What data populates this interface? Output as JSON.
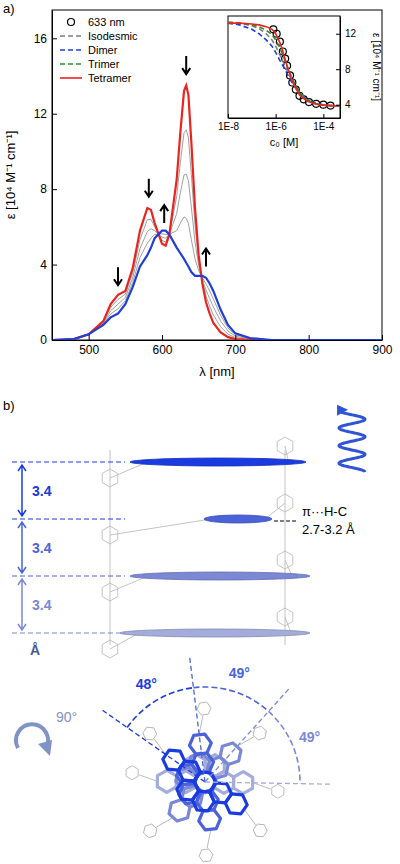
{
  "chart_data": [
    {
      "type": "line",
      "panel_label": "a)",
      "x_label": "λ [nm]",
      "y_label": "ε [10⁴ M⁻¹ cm⁻¹]",
      "xlim": [
        450,
        900
      ],
      "ylim": [
        0,
        17.5
      ],
      "xticks": [
        500,
        600,
        700,
        800,
        900
      ],
      "yticks": [
        0,
        4,
        8,
        12,
        16
      ],
      "x": [
        450,
        480,
        500,
        520,
        530,
        540,
        550,
        560,
        570,
        580,
        585,
        590,
        600,
        605,
        610,
        620,
        625,
        630,
        633,
        636,
        640,
        645,
        650,
        655,
        660,
        665,
        670,
        680,
        690,
        700,
        720,
        750,
        800,
        850,
        900
      ],
      "series": [
        {
          "color": "#a0a0a0",
          "values": [
            0,
            0.05,
            0.3,
            0.85,
            1.38,
            1.65,
            2.08,
            3.05,
            4.38,
            5.13,
            5.4,
            5.6,
            5.63,
            5.6,
            5.6,
            5.8,
            6.2,
            6.53,
            6.45,
            6.18,
            5.33,
            4.3,
            3.68,
            3.3,
            2.98,
            2.6,
            2.18,
            1.3,
            0.64,
            0.28,
            0.08,
            0,
            0,
            0,
            0
          ]
        },
        {
          "color": "#a0a0a0",
          "values": [
            0,
            0.05,
            0.3,
            0.9,
            1.55,
            1.9,
            2.25,
            3.3,
            4.85,
            5.75,
            5.9,
            5.8,
            5.45,
            5.4,
            5.6,
            6.7,
            7.8,
            8.75,
            8.8,
            8.45,
            7.05,
            5.2,
            3.95,
            3.2,
            2.65,
            2.2,
            1.75,
            1.0,
            0.48,
            0.2,
            0.05,
            0,
            0,
            0,
            0
          ]
        },
        {
          "color": "#a0a0a0",
          "values": [
            0,
            0.05,
            0.3,
            0.95,
            1.73,
            2.15,
            2.43,
            3.55,
            5.33,
            6.38,
            6.4,
            6.0,
            5.28,
            5.2,
            5.6,
            7.6,
            9.4,
            10.98,
            11.15,
            10.73,
            8.78,
            6.1,
            4.23,
            3.1,
            2.33,
            1.8,
            1.33,
            0.7,
            0.31,
            0.13,
            0.03,
            0,
            0,
            0,
            0
          ]
        },
        {
          "color": "#e8251f",
          "values": [
            0,
            0.05,
            0.3,
            1.0,
            1.9,
            2.4,
            2.6,
            3.8,
            5.8,
            7.0,
            6.9,
            6.2,
            5.1,
            5.0,
            5.6,
            8.5,
            11.0,
            13.2,
            13.5,
            13.0,
            10.5,
            7.0,
            4.5,
            3.0,
            2.0,
            1.4,
            0.9,
            0.4,
            0.15,
            0.05,
            0,
            0,
            0,
            0,
            0
          ]
        },
        {
          "color": "#1f3fd6",
          "values": [
            0,
            0.05,
            0.3,
            0.8,
            1.2,
            1.4,
            1.9,
            2.8,
            3.9,
            4.5,
            4.9,
            5.4,
            5.8,
            5.8,
            5.6,
            4.9,
            4.6,
            4.3,
            4.1,
            3.9,
            3.6,
            3.4,
            3.4,
            3.4,
            3.3,
            3.0,
            2.6,
            1.6,
            0.8,
            0.35,
            0.1,
            0,
            0,
            0,
            0
          ]
        }
      ],
      "arrows": [
        {
          "x": 540,
          "y": 2.9,
          "direction": "down"
        },
        {
          "x": 582,
          "y": 7.6,
          "direction": "down"
        },
        {
          "x": 603,
          "y": 6.2,
          "direction": "up"
        },
        {
          "x": 633,
          "y": 14.1,
          "direction": "down"
        },
        {
          "x": 660,
          "y": 3.9,
          "direction": "up"
        }
      ]
    },
    {
      "type": "line",
      "log": "x",
      "x_label": "c₀ [M]",
      "y_label": "ε [10⁴ M⁻¹ cm⁻¹]",
      "xlim": [
        1e-08,
        0.0005
      ],
      "ylim": [
        2.5,
        14
      ],
      "xticks": [
        {
          "value": 1e-08,
          "label": "1E-8"
        },
        {
          "value": 1e-06,
          "label": "1E-6"
        },
        {
          "value": 0.0001,
          "label": "1E-4"
        }
      ],
      "yticks": [
        4,
        8,
        12
      ],
      "legend": "upper left",
      "series": [
        {
          "name": "633 nm",
          "type": "scatter",
          "marker": "circle",
          "color": "#000000",
          "x": [
            8e-07,
            1.1e-06,
            1.5e-06,
            2e-06,
            2.5e-06,
            3e-06,
            4e-06,
            5e-06,
            7e-06,
            1e-05,
            1.5e-05,
            2.5e-05,
            5e-05,
            0.0001,
            0.0002
          ],
          "values": [
            12.5,
            12.0,
            11.1,
            10.0,
            9.2,
            8.4,
            7.3,
            6.5,
            5.7,
            5.0,
            4.6,
            4.3,
            4.1,
            4.0,
            3.9
          ]
        },
        {
          "name": "Isodesmic",
          "color": "#7f7f7f",
          "line_style": "dashed",
          "x": [
            1e-08,
            3e-08,
            1e-07,
            2e-07,
            4e-07,
            7e-07,
            1e-06,
            1.5e-06,
            2e-06,
            3e-06,
            5e-06,
            1e-05,
            2e-05,
            5e-05,
            0.0001,
            0.0002,
            0.0005
          ],
          "values": [
            13.3,
            13.2,
            12.9,
            12.6,
            12.0,
            11.3,
            10.6,
            9.6,
            8.9,
            7.9,
            6.6,
            5.3,
            4.5,
            4.1,
            3.95,
            3.9,
            3.85
          ]
        },
        {
          "name": "Dimer",
          "color": "#1f3fd6",
          "line_style": "dashed",
          "x": [
            1e-08,
            3e-08,
            1e-07,
            2e-07,
            4e-07,
            7e-07,
            1e-06,
            1.5e-06,
            2e-06,
            3e-06,
            5e-06,
            1e-05,
            2e-05,
            5e-05,
            0.0001,
            0.0002,
            0.0005
          ],
          "values": [
            13.2,
            13.0,
            12.5,
            12.0,
            11.3,
            10.6,
            9.9,
            9.0,
            8.4,
            7.5,
            6.4,
            5.3,
            4.6,
            4.15,
            4.0,
            3.9,
            3.85
          ]
        },
        {
          "name": "Trimer",
          "color": "#2e8b2e",
          "line_style": "dashed",
          "x": [
            1e-08,
            3e-08,
            1e-07,
            2e-07,
            4e-07,
            7e-07,
            1e-06,
            1.5e-06,
            2e-06,
            3e-06,
            5e-06,
            1e-05,
            2e-05,
            5e-05,
            0.0001,
            0.0002,
            0.0005
          ],
          "values": [
            13.3,
            13.2,
            13.0,
            12.8,
            12.4,
            11.9,
            11.3,
            10.4,
            9.6,
            8.4,
            6.9,
            5.4,
            4.6,
            4.1,
            3.95,
            3.9,
            3.85
          ]
        },
        {
          "name": "Tetramer",
          "color": "#e8251f",
          "line_style": "solid",
          "x": [
            1e-08,
            3e-08,
            1e-07,
            2e-07,
            4e-07,
            7e-07,
            1e-06,
            1.5e-06,
            2e-06,
            3e-06,
            5e-06,
            1e-05,
            2e-05,
            5e-05,
            0.0001,
            0.0002,
            0.0005
          ],
          "values": [
            13.2,
            13.2,
            13.1,
            13.0,
            12.8,
            12.5,
            12.0,
            11.0,
            10.0,
            8.4,
            6.6,
            5.1,
            4.4,
            4.05,
            3.95,
            3.9,
            3.85
          ]
        }
      ]
    }
  ],
  "diagram": {
    "panel_label": "b)",
    "side_view": {
      "spacings": [
        "3.4",
        "3.4",
        "3.4"
      ],
      "unit": "Å",
      "contact": {
        "label": "π···H-C",
        "distance": "2.7-3.2 Å"
      }
    },
    "top_view": {
      "rotation": "90°",
      "angles": [
        "48°",
        "49°",
        "49°"
      ]
    }
  }
}
